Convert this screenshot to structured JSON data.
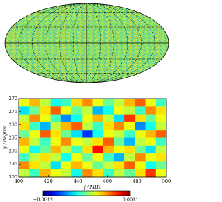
{
  "chart_data": {
    "type": "heatmap",
    "xlabel": "f / MHz",
    "ylabel": "φ / degree",
    "xlim": [
      400,
      500
    ],
    "xticks": [
      400,
      420,
      440,
      460,
      480,
      500
    ],
    "ylim": [
      270,
      300
    ],
    "yticks": [
      270,
      275,
      280,
      285,
      290,
      295,
      300
    ],
    "yaxis_inverted": true,
    "colormap": "jet",
    "clim": [
      -0.0012,
      0.0011
    ],
    "cticks": [
      {
        "value": -0.0012,
        "label": "−0.0012"
      },
      {
        "value": 0.0011,
        "label": "0.0011"
      }
    ],
    "z": [
      [
        0.0002,
        0.0004,
        0.0001,
        -0.0003,
        -0.0002,
        0.0003,
        0.0005,
        0.0002,
        -0.0001,
        0.0001,
        0.0004,
        0.0006,
        0.0002,
        -0.0002
      ],
      [
        -0.0004,
        -0.0001,
        0.0003,
        0.0006,
        0.0002,
        -0.0001,
        0.0001,
        -0.0005,
        -0.0003,
        0.0002,
        0.0001,
        -0.0002,
        0.0005,
        0.0003
      ],
      [
        0.0001,
        0.0005,
        0.0002,
        -0.0002,
        -0.0006,
        -0.0003,
        0.0002,
        0.0004,
        0.0001,
        -0.0004,
        0.0007,
        0.0003,
        -0.0001,
        0.0002
      ],
      [
        0.0003,
        -0.0002,
        -0.0005,
        0.0001,
        0.0004,
        0.0006,
        0.0001,
        -0.0002,
        0.0003,
        0.0005,
        0.0002,
        -0.0006,
        -0.0003,
        0.0001
      ],
      [
        -0.0001,
        0.0002,
        0.0006,
        0.0003,
        -0.0001,
        -0.0004,
        -0.0008,
        -0.0003,
        0.0002,
        0.0001,
        -0.0002,
        0.0002,
        0.0004,
        0.0006
      ],
      [
        0.0004,
        0.0001,
        -0.0002,
        0.0002,
        0.0005,
        0.0002,
        0.0001,
        0.0003,
        0.0006,
        -0.0001,
        -0.0005,
        0.0001,
        0.0002,
        -0.0002
      ],
      [
        0.0002,
        -0.0003,
        -0.0001,
        0.0004,
        0.0001,
        -0.0002,
        0.0003,
        0.0008,
        0.0004,
        0.0002,
        0.0003,
        -0.0001,
        -0.0004,
        0.0001
      ],
      [
        -0.0002,
        0.0001,
        0.0003,
        0.0001,
        -0.0003,
        0.0002,
        -0.0001,
        0.0002,
        -0.0002,
        -0.0005,
        0.0001,
        0.0005,
        0.0002,
        0.0003
      ],
      [
        0.0005,
        0.0003,
        0.0001,
        -0.0004,
        0.0002,
        0.0004,
        0.0002,
        -0.0001,
        0.0001,
        0.0003,
        0.0006,
        0.0002,
        -0.0003,
        -0.0001
      ],
      [
        0.0001,
        -0.0002,
        0.0004,
        0.0002,
        0.0001,
        -0.0003,
        0.0005,
        0.0003,
        -0.0002,
        0.0001,
        -0.0001,
        0.0003,
        0.0007,
        0.0002
      ]
    ]
  }
}
